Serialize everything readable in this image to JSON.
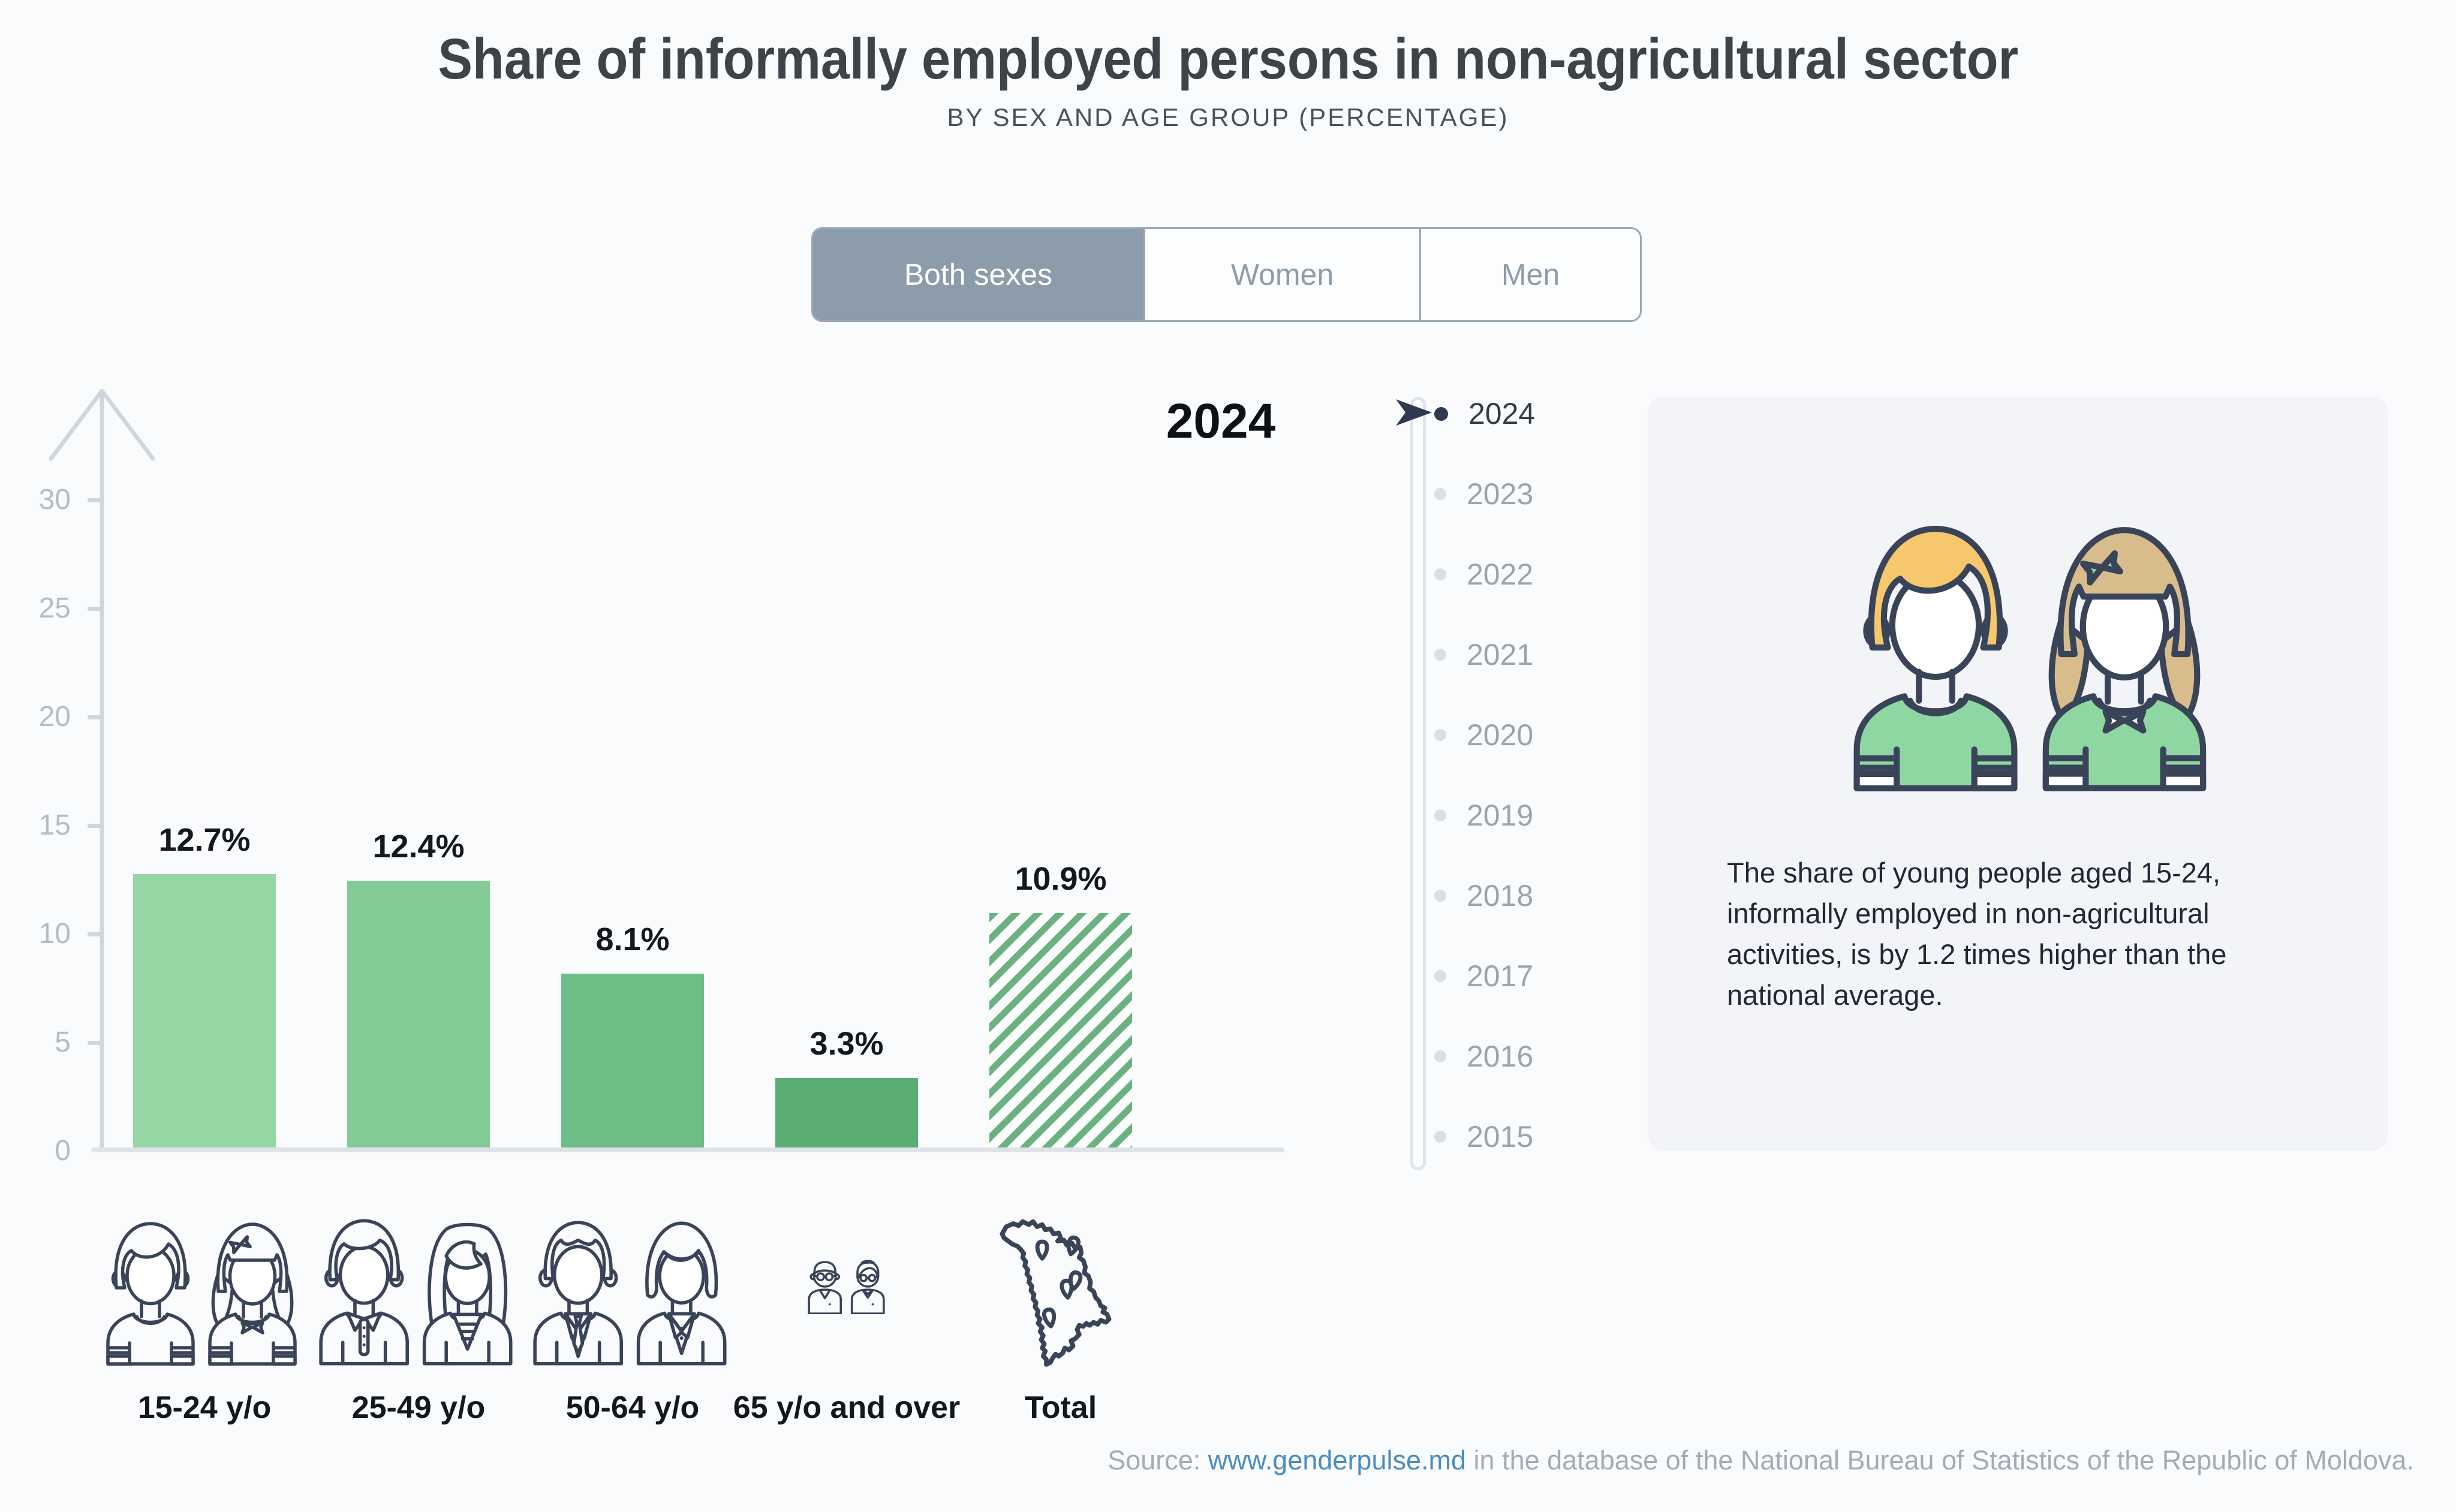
{
  "header": {
    "title": "Share of informally employed persons in non-agricultural sector",
    "subtitle": "BY SEX AND AGE GROUP (PERCENTAGE)"
  },
  "tabs": {
    "options": [
      "Both sexes",
      "Women",
      "Men"
    ],
    "selected": "Both sexes"
  },
  "year_display": "2024",
  "chart_data": {
    "type": "bar",
    "title": "Share of informally employed persons in non-agricultural sector",
    "subtitle": "By sex and age group (percentage)",
    "sex_filter": "Both sexes",
    "year": "2024",
    "categories": [
      "15-24 y/o",
      "25-49 y/o",
      "50-64 y/o",
      "65 y/o and over",
      "Total"
    ],
    "values": [
      12.7,
      12.4,
      8.1,
      3.3,
      10.9
    ],
    "value_labels": [
      "12.7%",
      "12.4%",
      "8.1%",
      "3.3%",
      "10.9%"
    ],
    "unit": "percent",
    "ylim": [
      0,
      33
    ],
    "yticks_desc": [
      30,
      25,
      20,
      15,
      10,
      5,
      0
    ],
    "grid": false,
    "legend_position": "none",
    "bar_colors": [
      "#95d6a4",
      "#83cb96",
      "#6dbd86",
      "#5aad73",
      "#6cb181"
    ],
    "total_bar_pattern": "diagonal-hatch",
    "category_icons": [
      "teen-couple-icon",
      "adult-couple-icon",
      "senior-couple-icon",
      "elderly-couple-icon",
      "moldova-map-icon"
    ]
  },
  "timeline": {
    "years": [
      "2024",
      "2023",
      "2022",
      "2021",
      "2020",
      "2019",
      "2018",
      "2017",
      "2016",
      "2015"
    ],
    "selected": "2024"
  },
  "infobox": {
    "text": "The share of young people aged 15-24, informally employed in non-agricultural activities, is by 1.2 times higher than the national average."
  },
  "source": {
    "label": "Source: ",
    "link_text": "www.genderpulse.md",
    "rest": " in the database of the National Bureau of Statistics of the Republic of Moldova."
  },
  "colors": {
    "page_background": "#fafbfc",
    "infobox_background": "#f2f4f7",
    "tab_active_background": "#8c9cab",
    "axis_gray": "#cfd6dd",
    "tick_label_gray": "#b4bcc6",
    "timeline_inactive": "#9aa4b1",
    "timeline_active": "#2e3950",
    "hatch_green": "#6cb181",
    "link_blue": "#4a8cc0",
    "outline_navy": "#3a4459",
    "boy_hair": "#f6c76d",
    "girl_hair": "#d8bc8c",
    "shirt_green": "#8fd7a2"
  }
}
